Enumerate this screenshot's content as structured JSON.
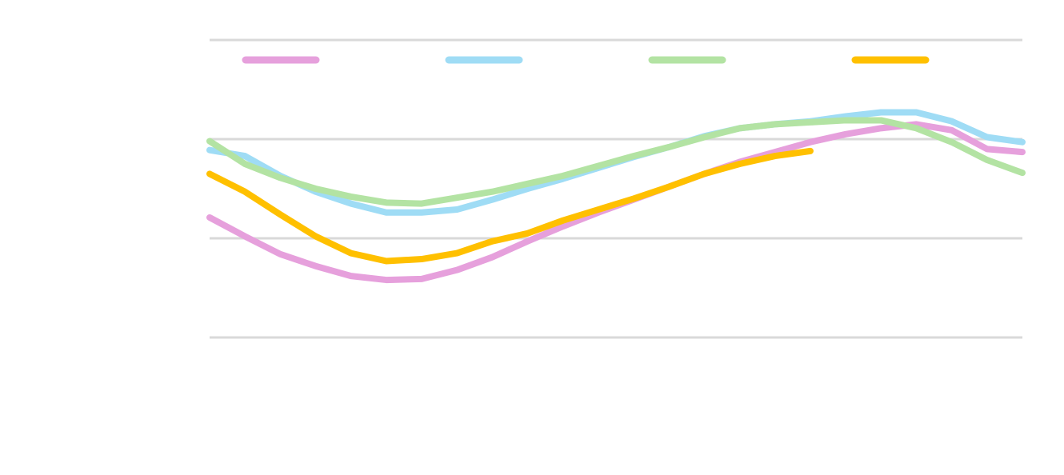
{
  "chart_data": {
    "type": "line",
    "categories": [
      null,
      null,
      null,
      null,
      null,
      null,
      null,
      null,
      null,
      null,
      null,
      null,
      null,
      null,
      null,
      null,
      null,
      null,
      null,
      null,
      null,
      null,
      null,
      null
    ],
    "series": [
      {
        "color": "#e6a0dc",
        "values": [
          1.21,
          1.02,
          0.84,
          0.72,
          0.62,
          0.58,
          0.59,
          0.68,
          0.81,
          0.97,
          1.12,
          1.26,
          1.39,
          1.52,
          1.65,
          1.77,
          1.87,
          1.97,
          2.05,
          2.11,
          2.15,
          2.09,
          1.9,
          1.87
        ]
      },
      {
        "color": "#9fdcf5",
        "values": [
          1.89,
          1.83,
          1.63,
          1.47,
          1.35,
          1.26,
          1.26,
          1.29,
          1.39,
          1.5,
          1.6,
          1.71,
          1.82,
          1.92,
          2.03,
          2.11,
          2.15,
          2.18,
          2.23,
          2.27,
          2.27,
          2.18,
          2.02,
          1.97
        ]
      },
      {
        "color": "#b3e3a3",
        "values": [
          1.98,
          1.75,
          1.61,
          1.5,
          1.42,
          1.36,
          1.35,
          1.41,
          1.47,
          1.55,
          1.63,
          1.73,
          1.83,
          1.92,
          2.02,
          2.11,
          2.15,
          2.17,
          2.19,
          2.19,
          2.11,
          1.97,
          1.79,
          1.66
        ]
      },
      {
        "color": "#ffc000",
        "values": [
          1.65,
          1.47,
          1.24,
          1.02,
          0.85,
          0.77,
          0.79,
          0.85,
          0.97,
          1.05,
          1.18,
          1.29,
          1.4,
          1.52,
          1.65,
          1.75,
          1.83,
          1.88,
          null,
          null,
          null,
          null,
          null,
          null
        ]
      }
    ],
    "ylim": [
      0,
      3
    ],
    "yticks": [
      0,
      1,
      2,
      3
    ],
    "grid": true,
    "legend": "top"
  }
}
